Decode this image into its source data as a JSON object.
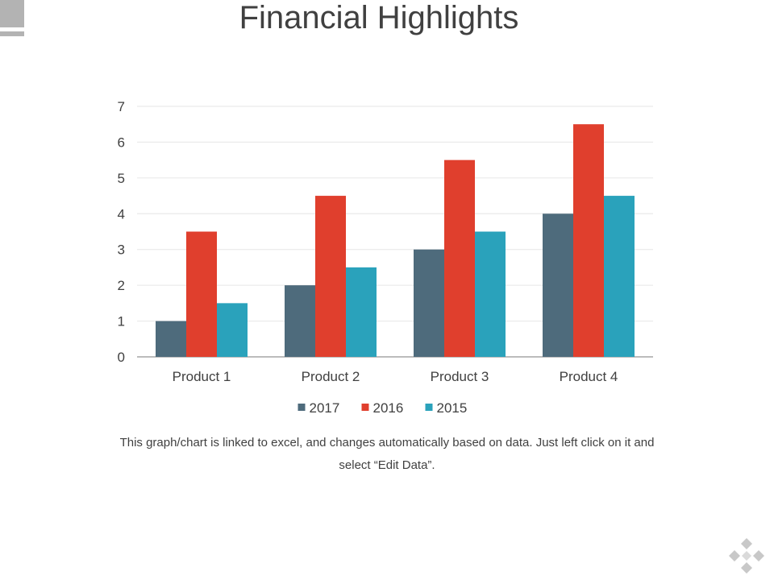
{
  "page": {
    "title": "Financial Highlights",
    "note": "This graph/chart is linked to excel, and changes automatically based on data. Just left click on it and select “Edit Data”."
  },
  "colors": {
    "text": "#404040",
    "grid": "#e6e6e6",
    "axis": "#a6a6a6",
    "corner_mark": "#b3b3b3",
    "logo": "#c8c8c8"
  },
  "icons": {
    "corner": "corner-block-icon",
    "logo": "diamond-logo-icon"
  },
  "chart_data": {
    "type": "bar",
    "title": "",
    "xlabel": "",
    "ylabel": "",
    "ylim": [
      0,
      7
    ],
    "yticks": [
      "0",
      "1",
      "2",
      "3",
      "4",
      "5",
      "6",
      "7"
    ],
    "grid": true,
    "legend_position": "bottom",
    "categories": [
      "Product 1",
      "Product 2",
      "Product 3",
      "Product 4"
    ],
    "series": [
      {
        "name": "2017",
        "color": "#4e6b7c",
        "values": [
          1,
          2,
          3,
          4
        ]
      },
      {
        "name": "2016",
        "color": "#e03f2d",
        "values": [
          3.5,
          4.5,
          5.5,
          6.5
        ]
      },
      {
        "name": "2015",
        "color": "#2aa2bb",
        "values": [
          1.5,
          2.5,
          3.5,
          4.5
        ]
      }
    ]
  }
}
